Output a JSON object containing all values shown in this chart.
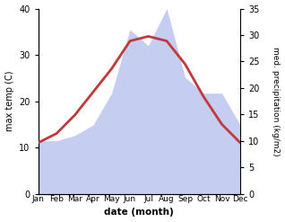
{
  "months": [
    "Jan",
    "Feb",
    "Mar",
    "Apr",
    "May",
    "Jun",
    "Jul",
    "Aug",
    "Sep",
    "Oct",
    "Nov",
    "Dec"
  ],
  "temperature": [
    11,
    13,
    17,
    22,
    27,
    33,
    34,
    33,
    28,
    21,
    15,
    11
  ],
  "precipitation": [
    10,
    10,
    11,
    13,
    19,
    31,
    28,
    35,
    22,
    19,
    19,
    13
  ],
  "temp_color": "#c0393b",
  "precip_color_fill": "#c5cef0",
  "temp_ylim": [
    0,
    40
  ],
  "precip_ylim": [
    0,
    35
  ],
  "temp_yticks": [
    0,
    10,
    20,
    30,
    40
  ],
  "precip_yticks": [
    0,
    5,
    10,
    15,
    20,
    25,
    30,
    35
  ],
  "ylabel_left": "max temp (C)",
  "ylabel_right": "med. precipitation (kg/m2)",
  "xlabel": "date (month)",
  "background_color": "#ffffff",
  "line_width": 2.0
}
